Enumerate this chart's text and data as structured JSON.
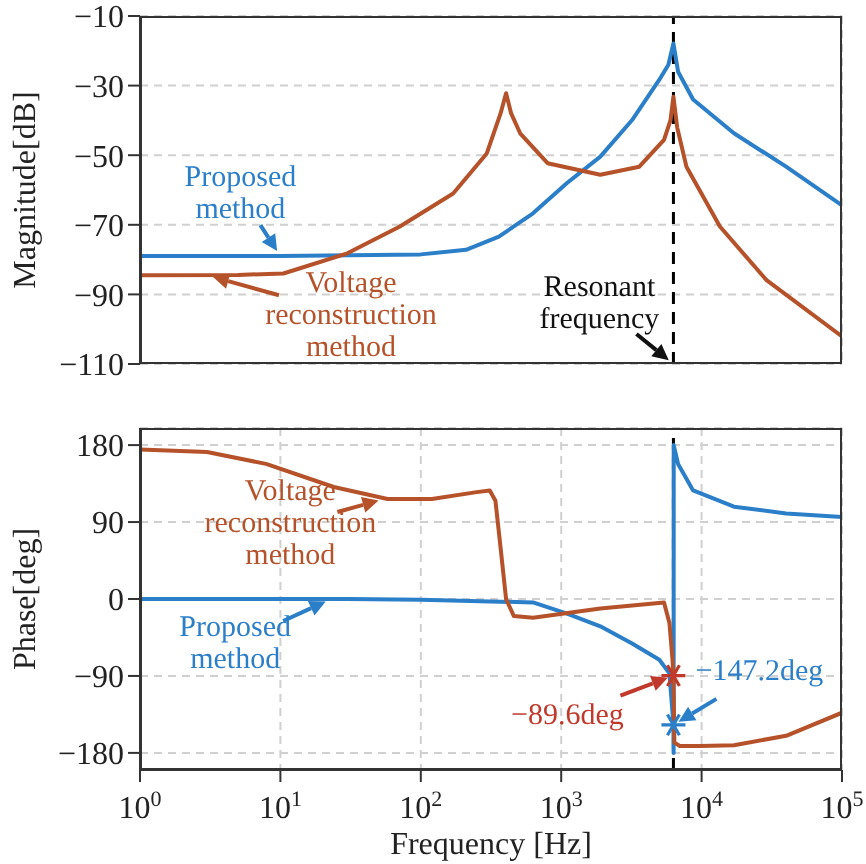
{
  "chart_data": [
    {
      "type": "line",
      "ylabel": "Magnitude[dB]",
      "log": "x",
      "grid": true,
      "legend": false,
      "tick_labels": "y",
      "xlim": [
        1,
        100000
      ],
      "xticks": [
        {
          "value": 1,
          "label": null
        },
        {
          "value": 10,
          "label": null
        },
        {
          "value": 100,
          "label": null
        },
        {
          "value": 1000,
          "label": null
        },
        {
          "value": 10000,
          "label": null
        },
        {
          "value": 100000,
          "label": null
        }
      ],
      "ylim": [
        -110,
        -10
      ],
      "yticks": [
        -110,
        -90,
        -70,
        -50,
        -30,
        -10
      ],
      "series": [
        {
          "color": "#2b7fc9",
          "x": [
            1,
            10,
            100,
            210,
            360,
            630,
            1100,
            1900,
            3200,
            5000,
            5800,
            6300,
            6800,
            8700,
            17000,
            40000,
            100000
          ],
          "values": [
            -79,
            -79,
            -78.5,
            -77.2,
            -73.4,
            -66.7,
            -58,
            -50.4,
            -39.9,
            -28.3,
            -24,
            -17.9,
            -26,
            -34,
            -43.7,
            -53.3,
            -64.4
          ]
        },
        {
          "color": "#b5522a",
          "x": [
            1,
            5,
            10.5,
            30,
            71,
            170,
            295,
            370,
            405,
            440,
            510,
            800,
            1900,
            3600,
            5400,
            6000,
            6300,
            6700,
            7800,
            13500,
            29000,
            100000
          ],
          "values": [
            -84.5,
            -84.4,
            -84,
            -78.2,
            -70.5,
            -61,
            -49.5,
            -38,
            -32.2,
            -38,
            -43.7,
            -52.3,
            -55.6,
            -53.3,
            -45.6,
            -40,
            -33.2,
            -42,
            -53.3,
            -70.5,
            -85.9,
            -102.1
          ]
        }
      ],
      "ref_lines": [
        {
          "axis": "x",
          "value": 6300,
          "color": "#000000",
          "line_style": "dashed"
        }
      ],
      "annotations": [
        {
          "text": "Proposed method",
          "x": 10,
          "y": -79
        },
        {
          "text": "Voltage reconstruction method",
          "x": 3,
          "y": -84.5
        },
        {
          "text": "Resonant frequency",
          "x": 6300,
          "y": -110
        }
      ]
    },
    {
      "type": "line",
      "ylabel": "Phase[deg]",
      "xlabel": "Frequency [Hz]",
      "log": "x",
      "grid": true,
      "legend": false,
      "xlim": [
        1,
        100000
      ],
      "xticks": [
        {
          "value": 1,
          "label": "10$^{0}$"
        },
        {
          "value": 10,
          "label": "10$^{1}$"
        },
        {
          "value": 100,
          "label": "10$^{2}$"
        },
        {
          "value": 1000,
          "label": "10$^{3}$"
        },
        {
          "value": 10000,
          "label": "10$^{4}$"
        },
        {
          "value": 100000,
          "label": "10$^{5}$"
        }
      ],
      "ylim": [
        -200,
        200
      ],
      "yticks": [
        -180,
        -90,
        0,
        90,
        180
      ],
      "series": [
        {
          "color": "#2b7fc9",
          "x": [
            1,
            30,
            100,
            630,
            1100,
            1900,
            3200,
            5000,
            5900,
            6300,
            6320,
            6330,
            6800,
            8700,
            17000,
            40000,
            100000
          ],
          "values": [
            0,
            0,
            -1,
            -4,
            -17,
            -32,
            -52,
            -71,
            -87,
            -147.2,
            -180,
            180,
            158,
            127,
            108,
            100,
            96
          ]
        },
        {
          "color": "#b5522a",
          "x": [
            1,
            3,
            7.9,
            24,
            58,
            120,
            250,
            310,
            340,
            370,
            405,
            460,
            630,
            1900,
            5400,
            5900,
            6200,
            6300,
            6400,
            7000,
            9800,
            17000,
            40000,
            100000
          ],
          "values": [
            175,
            172,
            158,
            131,
            117,
            117,
            125,
            127,
            115,
            60,
            0,
            -20,
            -22,
            -11,
            -4,
            -28,
            -70,
            -89.6,
            -168,
            -172,
            -172,
            -171,
            -160,
            -133
          ]
        },
        {
          "type": "scatter",
          "marker": "cross",
          "color": "#c0392b",
          "x": [
            6300
          ],
          "values": [
            -89.6
          ]
        },
        {
          "type": "scatter",
          "marker": "cross",
          "color": "#2b7fc9",
          "x": [
            6300
          ],
          "values": [
            -147.2
          ]
        }
      ],
      "ref_lines": [
        {
          "axis": "x",
          "value": 6300,
          "color": "#000000",
          "line_style": "dashed"
        }
      ],
      "annotations": [
        {
          "text": "Voltage reconstruction method",
          "x": 55,
          "y": 117
        },
        {
          "text": "Proposed method",
          "x": 23,
          "y": 0
        },
        {
          "text": "−89.6deg",
          "x": 6300,
          "y": -89.6
        },
        {
          "text": "−147.2deg",
          "x": 6300,
          "y": -147.2
        }
      ]
    }
  ]
}
